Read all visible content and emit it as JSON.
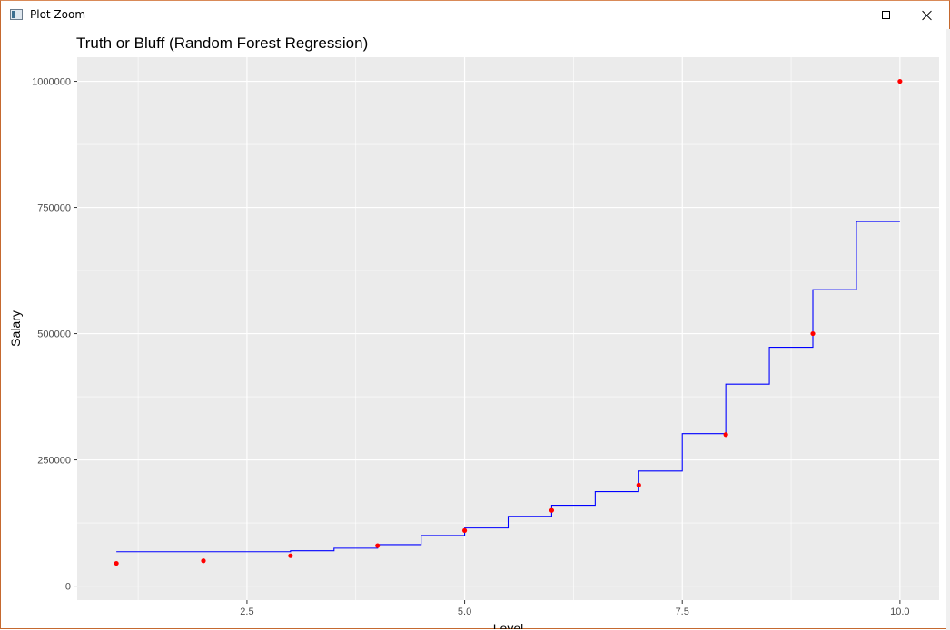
{
  "window": {
    "title": "Plot Zoom",
    "icons": {
      "app": "plot-zoom-app-icon",
      "minimize": "minimize-icon",
      "maximize": "maximize-icon",
      "close": "close-icon"
    }
  },
  "chart_data": {
    "type": "line",
    "title": "Truth or Bluff (Random Forest Regression)",
    "xlabel": "Level",
    "ylabel": "Salary",
    "xlim": [
      0.55,
      10.45
    ],
    "ylim": [
      -27750,
      1047750
    ],
    "x_ticks": [
      2.5,
      5.0,
      7.5,
      10.0
    ],
    "x_tick_labels": [
      "2.5",
      "5.0",
      "7.5",
      "10.0"
    ],
    "y_ticks": [
      0,
      250000,
      500000,
      750000,
      1000000
    ],
    "y_tick_labels": [
      "0",
      "250000",
      "500000",
      "750000",
      "1000000"
    ],
    "grid": true,
    "background_color": "#ebebeb",
    "grid_color": "#ffffff",
    "series": [
      {
        "kind": "scatter",
        "color": "#ff0000",
        "x": [
          1,
          2,
          3,
          4,
          5,
          6,
          7,
          8,
          9,
          10
        ],
        "y": [
          45000,
          50000,
          60000,
          80000,
          110000,
          150000,
          200000,
          300000,
          500000,
          1000000
        ]
      },
      {
        "kind": "step",
        "color": "#0000ff",
        "x": [
          1.0,
          3.0,
          3.5,
          4.0,
          4.5,
          5.0,
          5.5,
          6.0,
          6.5,
          7.0,
          7.5,
          8.0,
          8.5,
          9.0,
          9.5,
          10.0
        ],
        "y": [
          68000,
          70000,
          75000,
          82000,
          100000,
          115000,
          138000,
          160000,
          187000,
          228000,
          302000,
          400000,
          473000,
          587000,
          722000,
          722000
        ]
      }
    ]
  }
}
